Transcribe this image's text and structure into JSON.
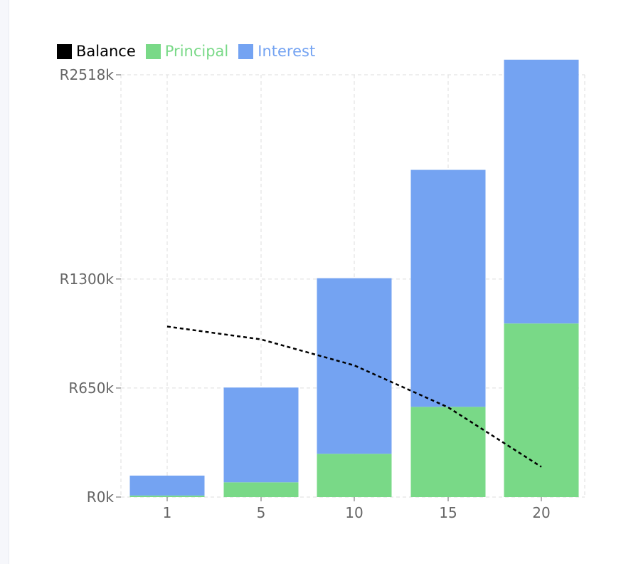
{
  "legend": {
    "balance": "Balance",
    "principal": "Principal",
    "interest": "Interest"
  },
  "colors": {
    "balance": "#000000",
    "principal": "#79d987",
    "interest": "#74a3f2",
    "grid": "#dddddd",
    "axis_text": "#666666"
  },
  "chart_data": {
    "type": "bar",
    "stacked": true,
    "categories": [
      "1",
      "5",
      "10",
      "15",
      "20"
    ],
    "series": [
      {
        "name": "Principal",
        "values": [
          9,
          88,
          258,
          538,
          1035
        ]
      },
      {
        "name": "Interest",
        "values": [
          119,
          565,
          1047,
          1413,
          1573
        ]
      },
      {
        "name": "Balance",
        "type": "line",
        "style": "dashed",
        "values": [
          1017,
          940,
          785,
          535,
          180
        ]
      }
    ],
    "ytick_labels": [
      "R0k",
      "R650k",
      "R1300k",
      "R2518k"
    ],
    "yticks": [
      0,
      650,
      1300,
      2518
    ],
    "ylim": [
      0,
      2518
    ],
    "grid": true,
    "legend_position": "top-left"
  }
}
